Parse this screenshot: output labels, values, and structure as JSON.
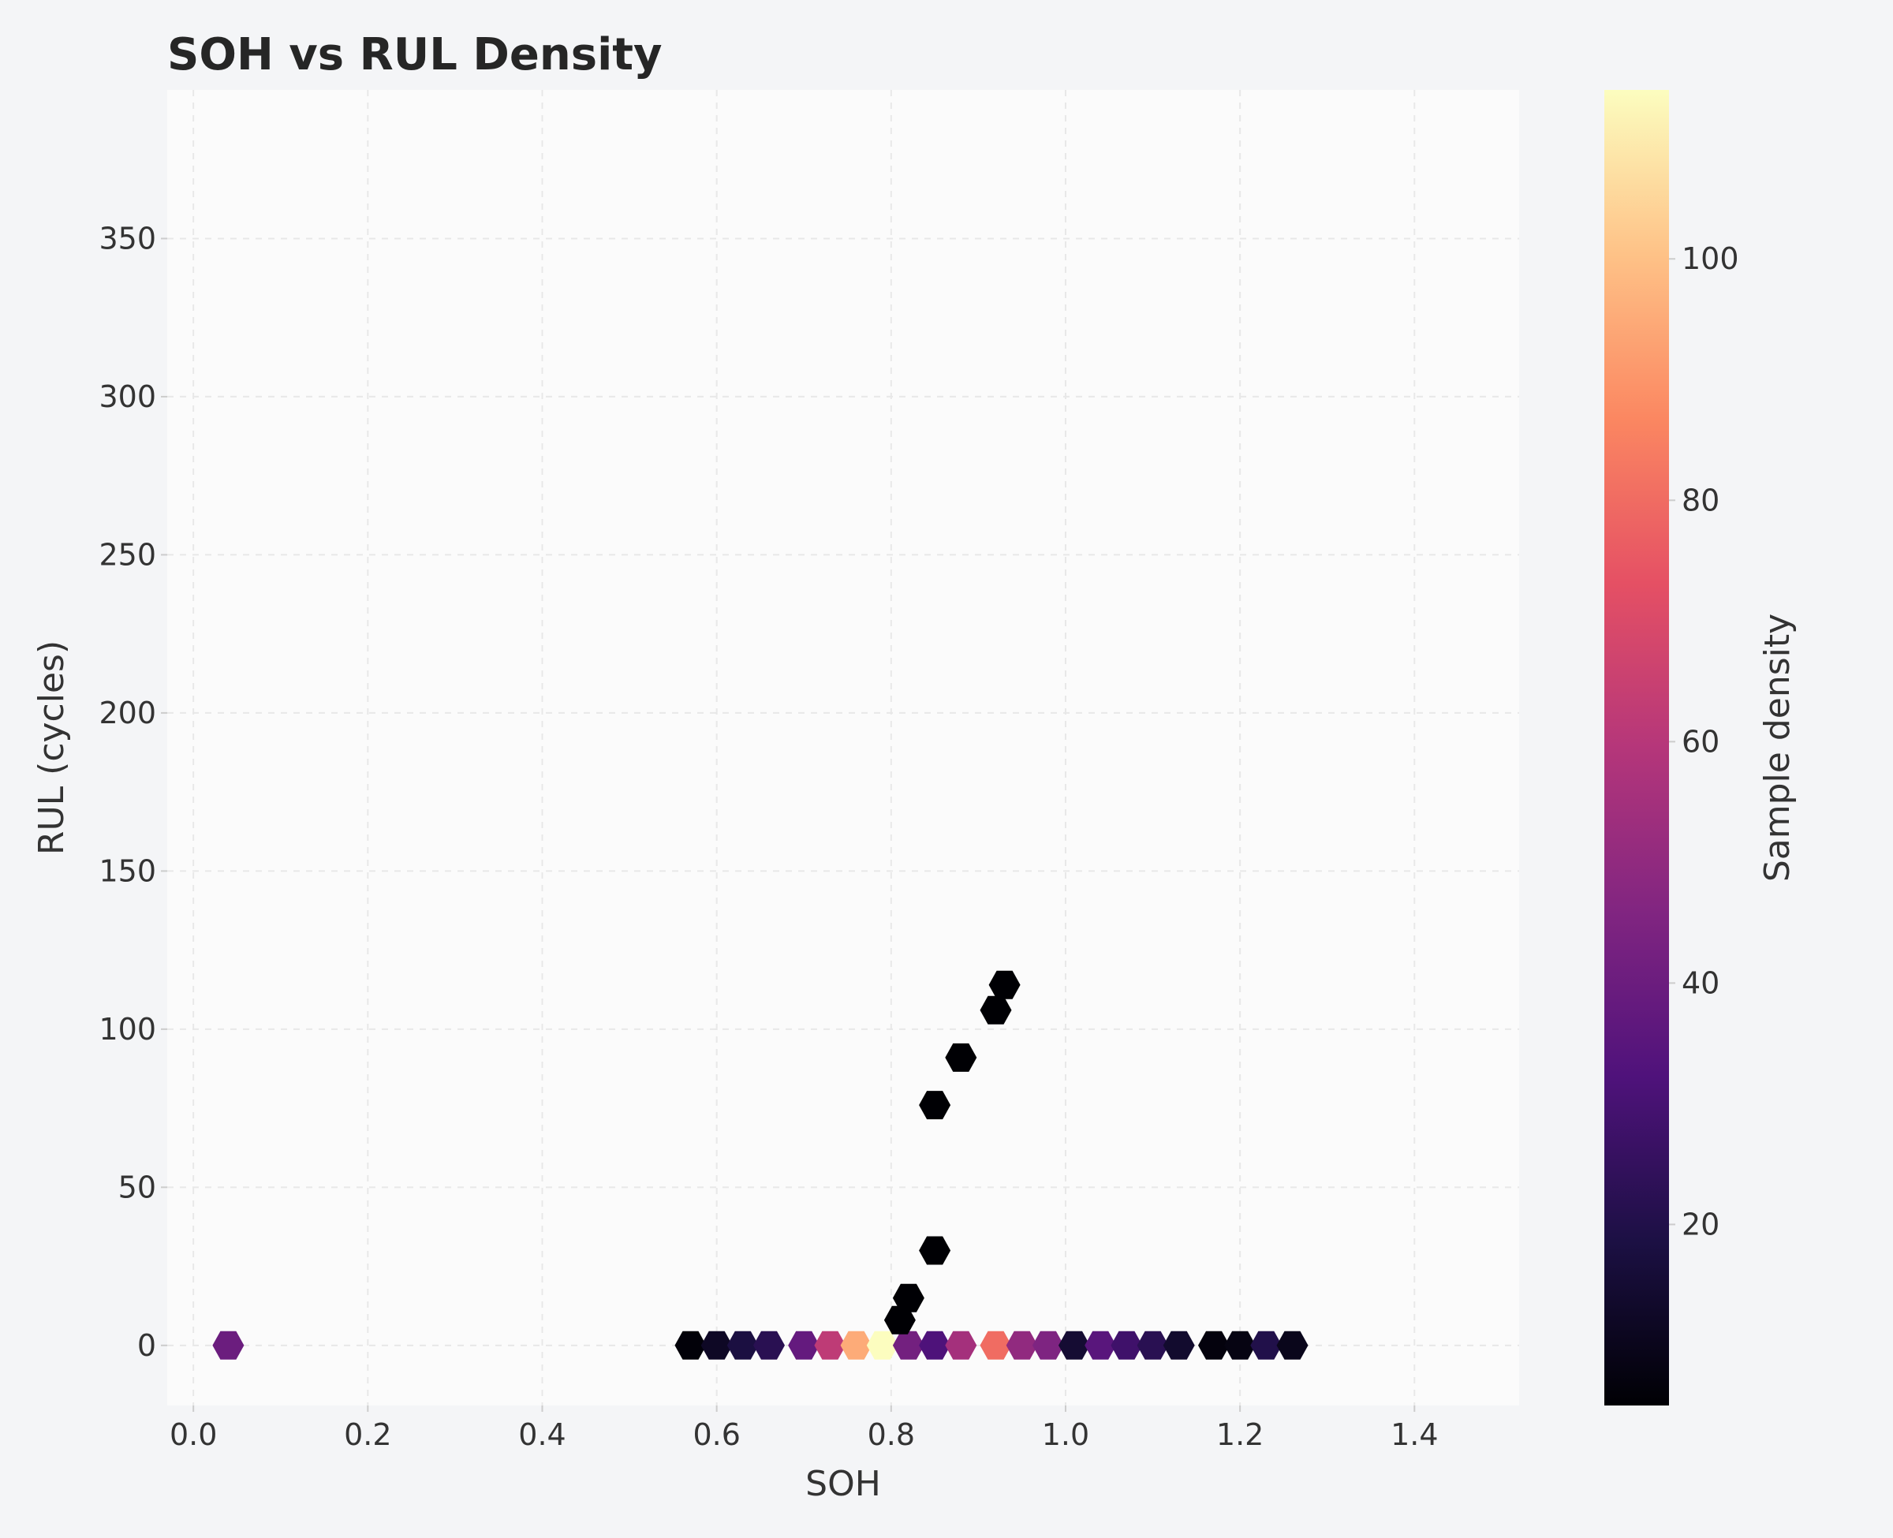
{
  "chart_data": {
    "type": "hexbin",
    "title": "SOH vs RUL Density",
    "xlabel": "SOH",
    "ylabel": "RUL (cycles)",
    "xlim": [
      -0.03,
      1.52
    ],
    "ylim": [
      -19,
      397
    ],
    "xticks": [
      0.0,
      0.2,
      0.4,
      0.6,
      0.8,
      1.0,
      1.2,
      1.4
    ],
    "xtick_labels": [
      "0.0",
      "0.2",
      "0.4",
      "0.6",
      "0.8",
      "1.0",
      "1.2",
      "1.4"
    ],
    "yticks": [
      0,
      50,
      100,
      150,
      200,
      250,
      300,
      350
    ],
    "ytick_labels": [
      "0",
      "50",
      "100",
      "150",
      "200",
      "250",
      "300",
      "350"
    ],
    "grid": true,
    "colormap": "magma",
    "colorbar": {
      "label": "Sample density",
      "range": [
        5,
        114
      ],
      "ticks": [
        20,
        40,
        60,
        80,
        100
      ],
      "tick_labels": [
        "20",
        "40",
        "60",
        "80",
        "100"
      ]
    },
    "bins": [
      {
        "x": 0.04,
        "y": 0,
        "count": 40
      },
      {
        "x": 0.57,
        "y": 0,
        "count": 6
      },
      {
        "x": 0.6,
        "y": 0,
        "count": 12
      },
      {
        "x": 0.63,
        "y": 0,
        "count": 18
      },
      {
        "x": 0.66,
        "y": 0,
        "count": 22
      },
      {
        "x": 0.7,
        "y": 0,
        "count": 38
      },
      {
        "x": 0.73,
        "y": 0,
        "count": 62
      },
      {
        "x": 0.76,
        "y": 0,
        "count": 95
      },
      {
        "x": 0.79,
        "y": 0,
        "count": 114
      },
      {
        "x": 0.82,
        "y": 0,
        "count": 42
      },
      {
        "x": 0.85,
        "y": 0,
        "count": 32
      },
      {
        "x": 0.88,
        "y": 0,
        "count": 55
      },
      {
        "x": 0.92,
        "y": 0,
        "count": 80
      },
      {
        "x": 0.95,
        "y": 0,
        "count": 50
      },
      {
        "x": 0.98,
        "y": 0,
        "count": 45
      },
      {
        "x": 1.01,
        "y": 0,
        "count": 15
      },
      {
        "x": 1.04,
        "y": 0,
        "count": 35
      },
      {
        "x": 1.07,
        "y": 0,
        "count": 28
      },
      {
        "x": 1.1,
        "y": 0,
        "count": 22
      },
      {
        "x": 1.13,
        "y": 0,
        "count": 14
      },
      {
        "x": 1.17,
        "y": 0,
        "count": 7
      },
      {
        "x": 1.2,
        "y": 0,
        "count": 8
      },
      {
        "x": 1.23,
        "y": 0,
        "count": 20
      },
      {
        "x": 1.26,
        "y": 0,
        "count": 10
      },
      {
        "x": 0.81,
        "y": 8,
        "count": 5
      },
      {
        "x": 0.82,
        "y": 15,
        "count": 5
      },
      {
        "x": 0.85,
        "y": 30,
        "count": 5
      },
      {
        "x": 0.85,
        "y": 76,
        "count": 5
      },
      {
        "x": 0.88,
        "y": 91,
        "count": 5
      },
      {
        "x": 0.92,
        "y": 106,
        "count": 5
      },
      {
        "x": 0.93,
        "y": 114,
        "count": 5
      }
    ]
  }
}
